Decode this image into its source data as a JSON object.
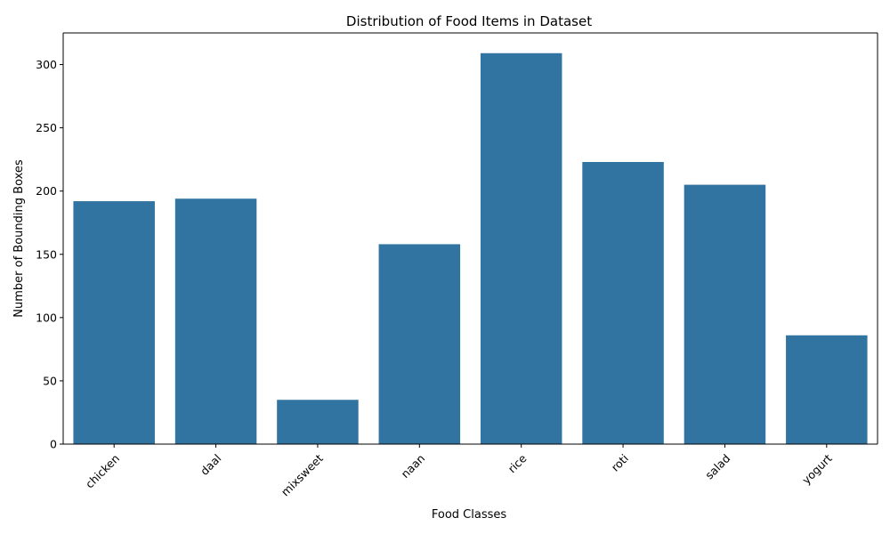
{
  "chart_data": {
    "type": "bar",
    "title": "Distribution of Food Items in Dataset",
    "xlabel": "Food Classes",
    "ylabel": "Number of Bounding Boxes",
    "categories": [
      "chicken",
      "daal",
      "mixsweet",
      "naan",
      "rice",
      "roti",
      "salad",
      "yogurt"
    ],
    "values": [
      192,
      194,
      35,
      158,
      309,
      223,
      205,
      86
    ],
    "ylim": [
      0,
      325
    ],
    "yticks": [
      0,
      50,
      100,
      150,
      200,
      250,
      300
    ],
    "bar_color": "#3274a1",
    "grid": false,
    "legend": "none"
  }
}
